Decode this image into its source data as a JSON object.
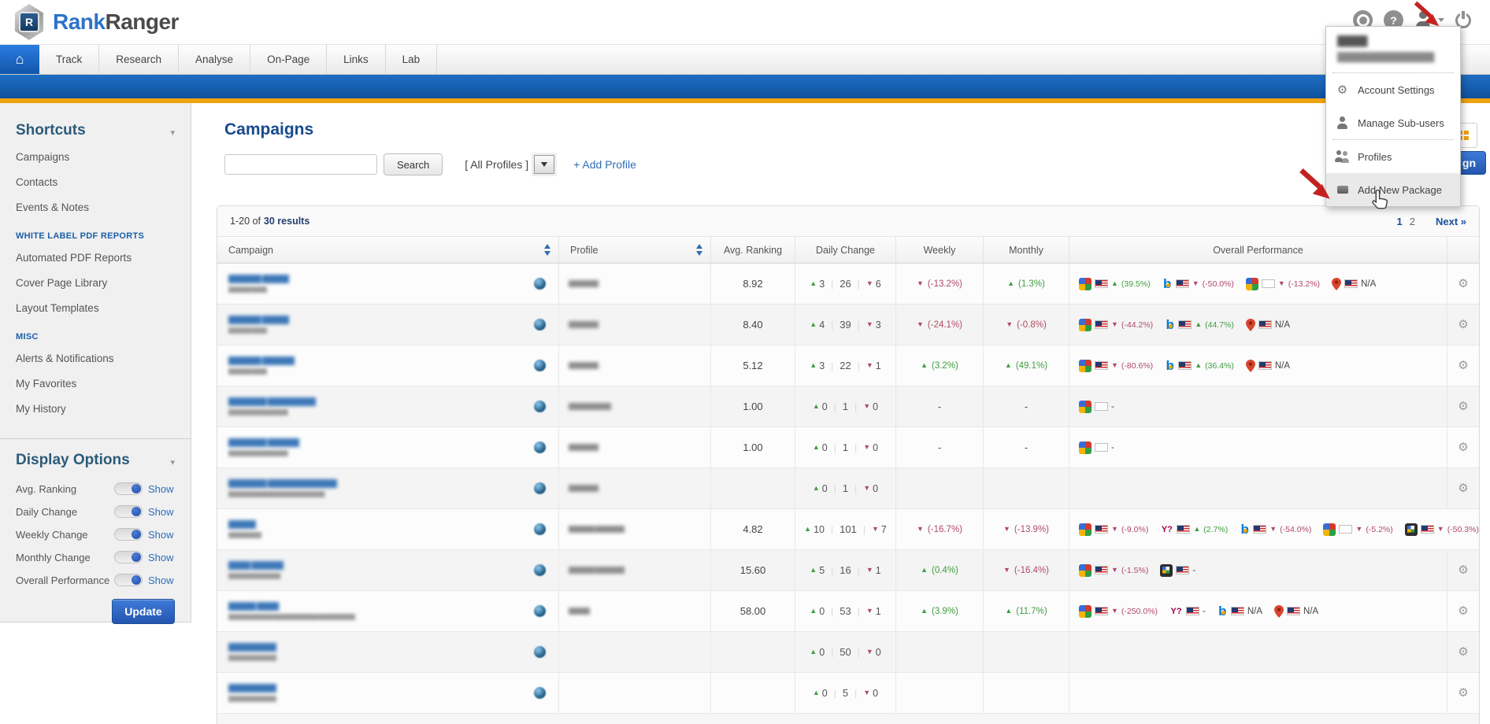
{
  "icons": {
    "home": "⌂",
    "help": "?",
    "gear": "⚙",
    "caret": "▾",
    "up_arrow": "▲",
    "down_arrow": "▼",
    "vsep": "|"
  },
  "header": {
    "logo_rank": "Rank",
    "logo_ranger": "Ranger",
    "logo_badge": "R"
  },
  "nav": {
    "tabs": [
      "Track",
      "Research",
      "Analyse",
      "On-Page",
      "Links",
      "Lab"
    ]
  },
  "user_menu": {
    "name_blob": "█████",
    "email_blob": "██████████████████",
    "items": [
      {
        "icon": "gear-icon",
        "label": "Account Settings"
      },
      {
        "icon": "user-icon",
        "label": "Manage Sub-users"
      },
      {
        "icon": "users-icon",
        "label": "Profiles",
        "sep_before": true
      },
      {
        "icon": "package-icon",
        "label": "Add New Package",
        "highlighted": true
      }
    ]
  },
  "sidebar": {
    "title": "Shortcuts",
    "shortcuts": [
      "Campaigns",
      "Contacts",
      "Events & Notes"
    ],
    "sections": [
      {
        "title": "WHITE LABEL PDF REPORTS",
        "items": [
          "Automated PDF Reports",
          "Cover Page Library",
          "Layout Templates"
        ]
      },
      {
        "title": "MISC",
        "items": [
          "Alerts & Notifications",
          "My Favorites",
          "My History"
        ]
      }
    ],
    "display_options": {
      "title": "Display Options",
      "toggles": [
        {
          "label": "Avg. Ranking",
          "state": "Show"
        },
        {
          "label": "Daily Change",
          "state": "Show"
        },
        {
          "label": "Weekly Change",
          "state": "Show"
        },
        {
          "label": "Monthly Change",
          "state": "Show"
        },
        {
          "label": "Overall Performance",
          "state": "Show"
        }
      ],
      "update_label": "Update"
    }
  },
  "main": {
    "title": "Campaigns",
    "search_button": "Search",
    "profiles_filter": "[ All Profiles ]",
    "add_profile": "+ Add Profile",
    "add_campaign_visible": "gn",
    "results": {
      "range": "1-20 of ",
      "total": "30 results"
    },
    "pagination": {
      "page1": "1",
      "page2": "2",
      "next": "Next »"
    },
    "table": {
      "columns": [
        "Campaign",
        "Profile",
        "Avg. Ranking",
        "Daily Change",
        "Weekly",
        "Monthly",
        "Overall Performance"
      ],
      "rows": [
        {
          "name_blob": "██████ █████",
          "domain_blob": "██████ ████",
          "profile_blob": "███████",
          "avg": "8.92",
          "daily": {
            "up": "3",
            "total": "26",
            "down": "6"
          },
          "weekly": {
            "d": "down",
            "v": "(-13.2%)"
          },
          "monthly": {
            "d": "up",
            "v": "(1.3%)"
          },
          "perf": [
            {
              "engine": "google",
              "flag": "us",
              "dir": "up",
              "value": "(39.5%)"
            },
            {
              "engine": "bing",
              "flag": "us",
              "dir": "down",
              "value": "(-50.0%)"
            },
            {
              "engine": "google",
              "flag": "blank",
              "dir": "down",
              "value": "(-13.2%)"
            },
            {
              "engine": "places",
              "flag": "us",
              "dir": "na",
              "value": "N/A"
            }
          ]
        },
        {
          "name_blob": "██████ █████",
          "domain_blob": "██████ ████",
          "profile_blob": "███████",
          "avg": "8.40",
          "daily": {
            "up": "4",
            "total": "39",
            "down": "3"
          },
          "weekly": {
            "d": "down",
            "v": "(-24.1%)"
          },
          "monthly": {
            "d": "down",
            "v": "(-0.8%)"
          },
          "perf": [
            {
              "engine": "google",
              "flag": "us",
              "dir": "down",
              "value": "(-44.2%)"
            },
            {
              "engine": "bing",
              "flag": "us",
              "dir": "up",
              "value": "(44.7%)"
            },
            {
              "engine": "places",
              "flag": "us",
              "dir": "na",
              "value": "N/A"
            }
          ]
        },
        {
          "name_blob": "██████ ██████",
          "domain_blob": "██████ ████",
          "profile_blob": "███████",
          "avg": "5.12",
          "daily": {
            "up": "3",
            "total": "22",
            "down": "1"
          },
          "weekly": {
            "d": "up",
            "v": "(3.2%)"
          },
          "monthly": {
            "d": "up",
            "v": "(49.1%)"
          },
          "perf": [
            {
              "engine": "google",
              "flag": "us",
              "dir": "down",
              "value": "(-80.6%)"
            },
            {
              "engine": "bing",
              "flag": "us",
              "dir": "up",
              "value": "(36.4%)"
            },
            {
              "engine": "places",
              "flag": "us",
              "dir": "na",
              "value": "N/A"
            }
          ]
        },
        {
          "name_blob": "███████ █████████",
          "domain_blob": "████████████████",
          "profile_blob": "██████████",
          "avg": "1.00",
          "daily": {
            "up": "0",
            "total": "1",
            "down": "0"
          },
          "weekly": {
            "d": "dash"
          },
          "monthly": {
            "d": "dash"
          },
          "perf": [
            {
              "engine": "google",
              "flag": "blank",
              "dir": "dash",
              "value": "-"
            }
          ]
        },
        {
          "name_blob": "███████ ██████",
          "domain_blob": "████████████████",
          "profile_blob": "███████",
          "avg": "1.00",
          "daily": {
            "up": "0",
            "total": "1",
            "down": "0"
          },
          "weekly": {
            "d": "dash"
          },
          "monthly": {
            "d": "dash"
          },
          "perf": [
            {
              "engine": "google",
              "flag": "blank",
              "dir": "dash",
              "value": "-"
            }
          ]
        },
        {
          "name_blob": "███████ █████████████",
          "domain_blob": "██████████████████████████",
          "profile_blob": "███████",
          "avg": "",
          "daily": {
            "up": "0",
            "total": "1",
            "down": "0"
          },
          "weekly": {
            "d": "none"
          },
          "monthly": {
            "d": "none"
          },
          "perf": []
        },
        {
          "name_blob": "█████",
          "domain_blob": "█████████",
          "profile_blob": "██████ ███████",
          "avg": "4.82",
          "daily": {
            "up": "10",
            "total": "101",
            "down": "7"
          },
          "weekly": {
            "d": "down",
            "v": "(-16.7%)"
          },
          "monthly": {
            "d": "down",
            "v": "(-13.9%)"
          },
          "perf": [
            {
              "engine": "google",
              "flag": "us",
              "dir": "down",
              "value": "(-9.0%)"
            },
            {
              "engine": "yahoo",
              "flag": "us",
              "dir": "up",
              "value": "(2.7%)"
            },
            {
              "engine": "bing",
              "flag": "us",
              "dir": "down",
              "value": "(-54.0%)"
            },
            {
              "engine": "google",
              "flag": "blank",
              "dir": "down",
              "value": "(-5.2%)"
            },
            {
              "engine": "google-mobile",
              "flag": "us",
              "dir": "down",
              "value": "(-50.3%)"
            }
          ]
        },
        {
          "name_blob": "████ ██████",
          "domain_blob": "██████████████",
          "profile_blob": "██████ ███████",
          "avg": "15.60",
          "daily": {
            "up": "5",
            "total": "16",
            "down": "1"
          },
          "weekly": {
            "d": "up",
            "v": "(0.4%)"
          },
          "monthly": {
            "d": "down",
            "v": "(-16.4%)"
          },
          "perf": [
            {
              "engine": "google",
              "flag": "us",
              "dir": "down",
              "value": "(-1.5%)"
            },
            {
              "engine": "google-mobile",
              "flag": "us",
              "dir": "dash",
              "value": "-"
            }
          ]
        },
        {
          "name_blob": "█████ ████",
          "domain_blob": "████████████ ████████████ ██████████",
          "profile_blob": "█████",
          "avg": "58.00",
          "daily": {
            "up": "0",
            "total": "53",
            "down": "1"
          },
          "weekly": {
            "d": "up",
            "v": "(3.9%)"
          },
          "monthly": {
            "d": "up",
            "v": "(11.7%)"
          },
          "perf": [
            {
              "engine": "google",
              "flag": "us",
              "dir": "down",
              "value": "(-250.0%)"
            },
            {
              "engine": "yahoo",
              "flag": "us",
              "dir": "dash",
              "value": "-"
            },
            {
              "engine": "bing",
              "flag": "us",
              "dir": "na",
              "value": "N/A"
            },
            {
              "engine": "places",
              "flag": "us",
              "dir": "na",
              "value": "N/A"
            }
          ]
        },
        {
          "name_blob": "█████████",
          "domain_blob": "█████████████",
          "profile_blob": "",
          "avg": "",
          "daily": {
            "up": "0",
            "total": "50",
            "down": "0"
          },
          "weekly": {
            "d": "none"
          },
          "monthly": {
            "d": "none"
          },
          "perf": []
        },
        {
          "name_blob": "█████████",
          "domain_blob": "█████████████",
          "profile_blob": "",
          "avg": "",
          "daily": {
            "up": "0",
            "total": "5",
            "down": "0"
          },
          "weekly": {
            "d": "none"
          },
          "monthly": {
            "d": "none"
          },
          "perf": []
        }
      ]
    }
  }
}
